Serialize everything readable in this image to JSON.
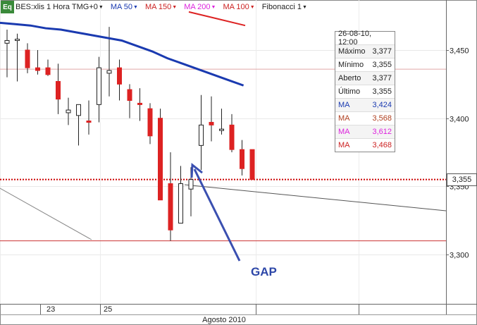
{
  "chart_data": {
    "type": "candlestick",
    "symbol": "BES:xlis 1 Hora TMG+0",
    "x_tick_labels": [
      "23",
      "25"
    ],
    "x_axis_caption": "Agosto 2010",
    "y_axis_ticks": [
      "3,300",
      "3,350",
      "3,400",
      "3,450"
    ],
    "ylim": [
      3.245,
      3.477
    ],
    "grid": true,
    "legend_placement": "top-left",
    "indicators": [
      {
        "name": "MA 50",
        "color": "#1a3ab0",
        "menu_icon": "dropdown-caret-icon"
      },
      {
        "name": "MA 150",
        "color": "#cc2222",
        "menu_icon": "dropdown-caret-icon"
      },
      {
        "name": "MA 200",
        "color": "#dd22dd",
        "menu_icon": "dropdown-caret-icon"
      },
      {
        "name": "MA 100",
        "color": "#cc2222",
        "menu_icon": "dropdown-caret-icon"
      },
      {
        "name": "Fibonacci 1",
        "color": "#222222",
        "menu_icon": "dropdown-caret-icon"
      }
    ],
    "candles": [
      {
        "o": 3.455,
        "h": 3.465,
        "l": 3.43,
        "c": 3.457
      },
      {
        "o": 3.458,
        "h": 3.462,
        "l": 3.427,
        "c": 3.458
      },
      {
        "o": 3.45,
        "h": 3.455,
        "l": 3.433,
        "c": 3.437
      },
      {
        "o": 3.437,
        "h": 3.45,
        "l": 3.432,
        "c": 3.435
      },
      {
        "o": 3.437,
        "h": 3.443,
        "l": 3.431,
        "c": 3.432
      },
      {
        "o": 3.427,
        "h": 3.44,
        "l": 3.403,
        "c": 3.414
      },
      {
        "o": 3.404,
        "h": 3.415,
        "l": 3.395,
        "c": 3.406
      },
      {
        "o": 3.402,
        "h": 3.41,
        "l": 3.38,
        "c": 3.41
      },
      {
        "o": 3.398,
        "h": 3.413,
        "l": 3.388,
        "c": 3.397
      },
      {
        "o": 3.41,
        "h": 3.445,
        "l": 3.397,
        "c": 3.437
      },
      {
        "o": 3.433,
        "h": 3.467,
        "l": 3.416,
        "c": 3.435
      },
      {
        "o": 3.437,
        "h": 3.443,
        "l": 3.413,
        "c": 3.425
      },
      {
        "o": 3.421,
        "h": 3.425,
        "l": 3.4,
        "c": 3.413
      },
      {
        "o": 3.411,
        "h": 3.422,
        "l": 3.398,
        "c": 3.41
      },
      {
        "o": 3.407,
        "h": 3.411,
        "l": 3.381,
        "c": 3.387
      },
      {
        "o": 3.4,
        "h": 3.407,
        "l": 3.34,
        "c": 3.34
      },
      {
        "o": 3.352,
        "h": 3.375,
        "l": 3.31,
        "c": 3.318
      },
      {
        "o": 3.323,
        "h": 3.365,
        "l": 3.323,
        "c": 3.352
      },
      {
        "o": 3.348,
        "h": 3.364,
        "l": 3.328,
        "c": 3.355
      },
      {
        "o": 3.38,
        "h": 3.417,
        "l": 3.362,
        "c": 3.395
      },
      {
        "o": 3.397,
        "h": 3.416,
        "l": 3.383,
        "c": 3.395
      },
      {
        "o": 3.392,
        "h": 3.407,
        "l": 3.388,
        "c": 3.392
      },
      {
        "o": 3.395,
        "h": 3.403,
        "l": 3.375,
        "c": 3.377
      },
      {
        "o": 3.377,
        "h": 3.384,
        "l": 3.358,
        "c": 3.363
      },
      {
        "o": 3.377,
        "h": 3.377,
        "l": 3.355,
        "c": 3.355
      }
    ],
    "ma50_series": [
      3.47,
      3.469,
      3.468,
      3.466,
      3.465,
      3.463,
      3.461,
      3.459,
      3.457,
      3.453,
      3.449,
      3.444,
      3.44,
      3.436,
      3.432,
      3.428,
      3.424
    ],
    "ma_red_upper_series": [
      3.478,
      3.473,
      3.468
    ],
    "support_line_value": 3.31,
    "resistance_line_value": 3.436,
    "last_price_line_value": 3.355,
    "gap_label": "GAP",
    "ohlc_box": {
      "date": "26-08-10, 12:00",
      "rows": [
        {
          "label": "Máximo",
          "value": "3,377",
          "color": "#222222"
        },
        {
          "label": "Mínimo",
          "value": "3,355",
          "color": "#222222"
        },
        {
          "label": "Aberto",
          "value": "3,377",
          "color": "#222222"
        },
        {
          "label": "Último",
          "value": "3,355",
          "color": "#222222"
        },
        {
          "label": "MA",
          "value": "3,424",
          "color": "#1a3ab0"
        },
        {
          "label": "MA",
          "value": "3,568",
          "color": "#b04020"
        },
        {
          "label": "MA",
          "value": "3,612",
          "color": "#dd22dd"
        },
        {
          "label": "MA",
          "value": "3,468",
          "color": "#cc2222"
        }
      ]
    },
    "last_price_tag": "3,355",
    "colors": {
      "up_candle_fill": "#ffffff",
      "down_candle_fill": "#dd2222",
      "ma50": "#1a3ab0",
      "ma_red": "#dd2222",
      "support": "#cc3333",
      "last_price": "#cc0000",
      "arrow": "#3a4fb0"
    }
  }
}
